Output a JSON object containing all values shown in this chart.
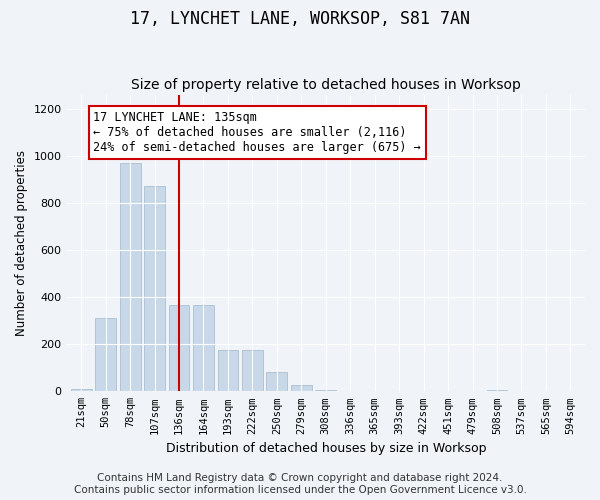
{
  "title": "17, LYNCHET LANE, WORKSOP, S81 7AN",
  "subtitle": "Size of property relative to detached houses in Worksop",
  "xlabel": "Distribution of detached houses by size in Worksop",
  "ylabel": "Number of detached properties",
  "bar_color": "#c8d8e8",
  "bar_edge_color": "#a0b8cc",
  "vline_color": "#cc0000",
  "vline_index": 4,
  "annotation_text": "17 LYNCHET LANE: 135sqm\n← 75% of detached houses are smaller (2,116)\n24% of semi-detached houses are larger (675) →",
  "annotation_box_color": "#ffffff",
  "annotation_box_edge": "#cc0000",
  "categories": [
    "21sqm",
    "50sqm",
    "78sqm",
    "107sqm",
    "136sqm",
    "164sqm",
    "193sqm",
    "222sqm",
    "250sqm",
    "279sqm",
    "308sqm",
    "336sqm",
    "365sqm",
    "393sqm",
    "422sqm",
    "451sqm",
    "479sqm",
    "508sqm",
    "537sqm",
    "565sqm",
    "594sqm"
  ],
  "values": [
    10,
    310,
    970,
    870,
    365,
    365,
    175,
    175,
    80,
    25,
    5,
    2,
    2,
    2,
    2,
    2,
    2,
    7,
    2,
    2,
    2
  ],
  "ylim": [
    0,
    1260
  ],
  "yticks": [
    0,
    200,
    400,
    600,
    800,
    1000,
    1200
  ],
  "bg_color": "#f0f4f8",
  "footer_text": "Contains HM Land Registry data © Crown copyright and database right 2024.\nContains public sector information licensed under the Open Government Licence v3.0.",
  "title_fontsize": 12,
  "subtitle_fontsize": 10,
  "annotation_fontsize": 8.5,
  "footer_fontsize": 7.5
}
